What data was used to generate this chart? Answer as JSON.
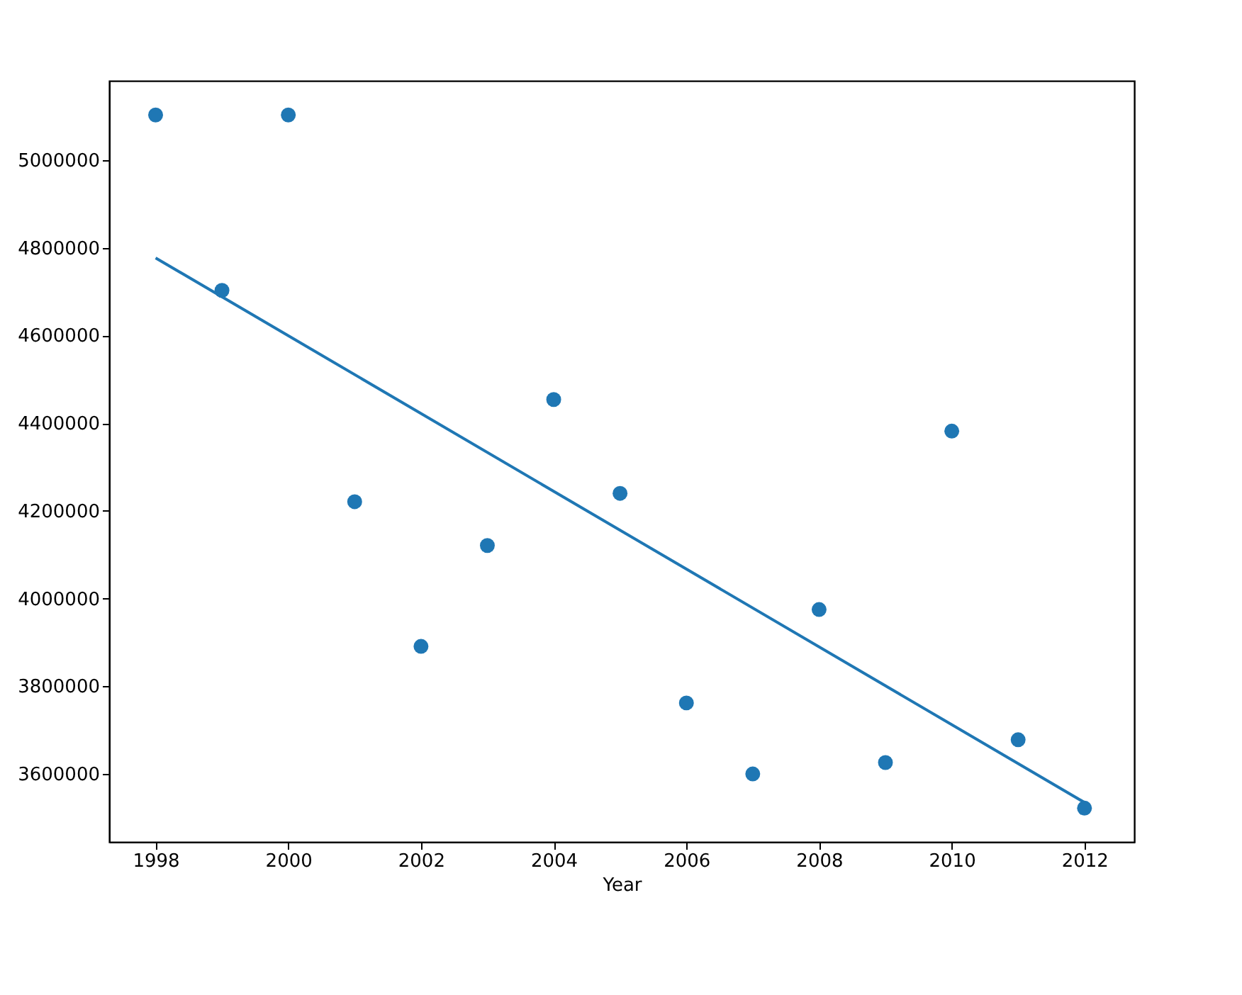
{
  "chart_data": {
    "type": "scatter",
    "xlabel": "Year",
    "x": [
      1998,
      1999,
      2000,
      2001,
      2002,
      2003,
      2004,
      2005,
      2006,
      2007,
      2008,
      2009,
      2010,
      2011,
      2012
    ],
    "xlim": [
      1997.3,
      2012.75
    ],
    "xticks": [
      1998,
      2000,
      2002,
      2004,
      2006,
      2008,
      2010,
      2012
    ],
    "ylim": [
      3445000,
      5181000
    ],
    "yticks": [
      3600000,
      3800000,
      4000000,
      4200000,
      4400000,
      4600000,
      4800000,
      5000000
    ],
    "grid": false,
    "marker": "circle",
    "series": [
      {
        "color": "#1f77b4",
        "values": [
          5103000,
          4703000,
          5103000,
          4221000,
          3891000,
          4121000,
          4454000,
          4240000,
          3762000,
          3600000,
          3975000,
          3626000,
          4382000,
          3678000,
          3522000
        ]
      },
      {
        "type": "line",
        "color": "#1f77b4",
        "x": [
          1998,
          2012
        ],
        "values": [
          4777000,
          3535000
        ],
        "line_style": "solid",
        "marker": "none"
      }
    ]
  }
}
